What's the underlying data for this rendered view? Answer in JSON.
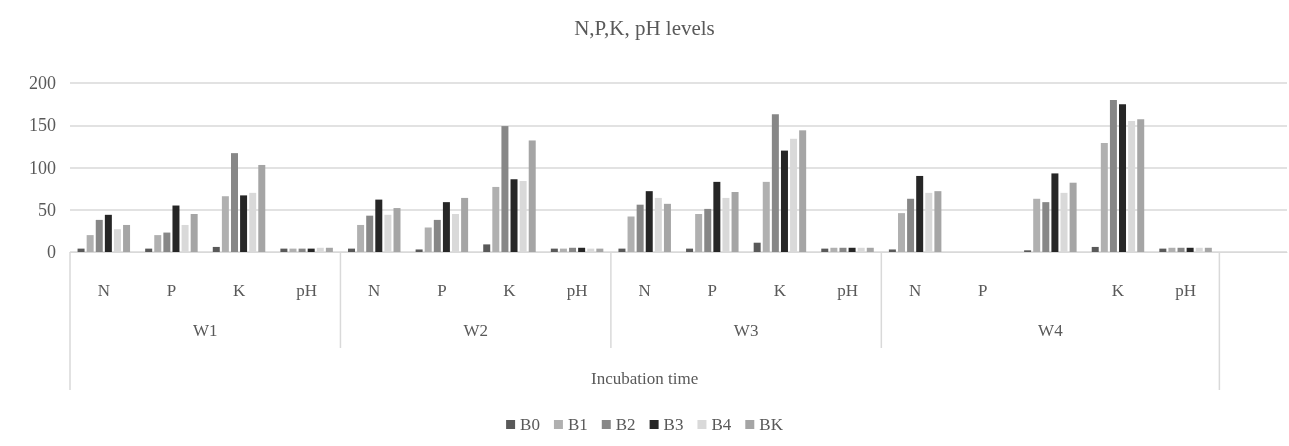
{
  "chart_data": {
    "type": "bar",
    "title": "N,P,K, pH levels",
    "xlabel": "Incubation time",
    "categories": [
      "N",
      "P",
      "K",
      "pH",
      "N",
      "P",
      "K",
      "pH",
      "N",
      "P",
      "K",
      "pH",
      "N",
      "P",
      null,
      "K",
      "pH",
      null
    ],
    "annotations": [
      "W1",
      "W2",
      "W3",
      "W4"
    ],
    "series": [
      {
        "name": "B0",
        "color": "#595959",
        "values": [
          4,
          4,
          6,
          4,
          4,
          3,
          9,
          4,
          4,
          4,
          11,
          4,
          3,
          null,
          2,
          6,
          4,
          null
        ]
      },
      {
        "name": "B1",
        "color": "#b0b0b0",
        "values": [
          20,
          20,
          66,
          4,
          32,
          29,
          77,
          4,
          42,
          45,
          83,
          5,
          46,
          null,
          63,
          129,
          5,
          null
        ]
      },
      {
        "name": "B2",
        "color": "#878787",
        "values": [
          38,
          23,
          117,
          4,
          43,
          38,
          149,
          5,
          56,
          51,
          163,
          5,
          63,
          null,
          59,
          180,
          5,
          null
        ]
      },
      {
        "name": "B3",
        "color": "#262626",
        "values": [
          44,
          55,
          67,
          4,
          62,
          59,
          86,
          5,
          72,
          83,
          120,
          5,
          90,
          null,
          93,
          175,
          5,
          null
        ]
      },
      {
        "name": "B4",
        "color": "#d9d9d9",
        "values": [
          27,
          32,
          70,
          5,
          44,
          45,
          84,
          4,
          64,
          64,
          134,
          5,
          70,
          null,
          70,
          155,
          5,
          null
        ]
      },
      {
        "name": "BK",
        "color": "#a5a5a5",
        "values": [
          32,
          45,
          103,
          5,
          52,
          64,
          132,
          4,
          57,
          71,
          144,
          5,
          72,
          null,
          82,
          157,
          5,
          null
        ]
      }
    ],
    "ylim": [
      0,
      200
    ],
    "yticks": [
      0,
      50,
      100,
      150,
      200
    ],
    "grid": "y",
    "legend": "bottom"
  }
}
